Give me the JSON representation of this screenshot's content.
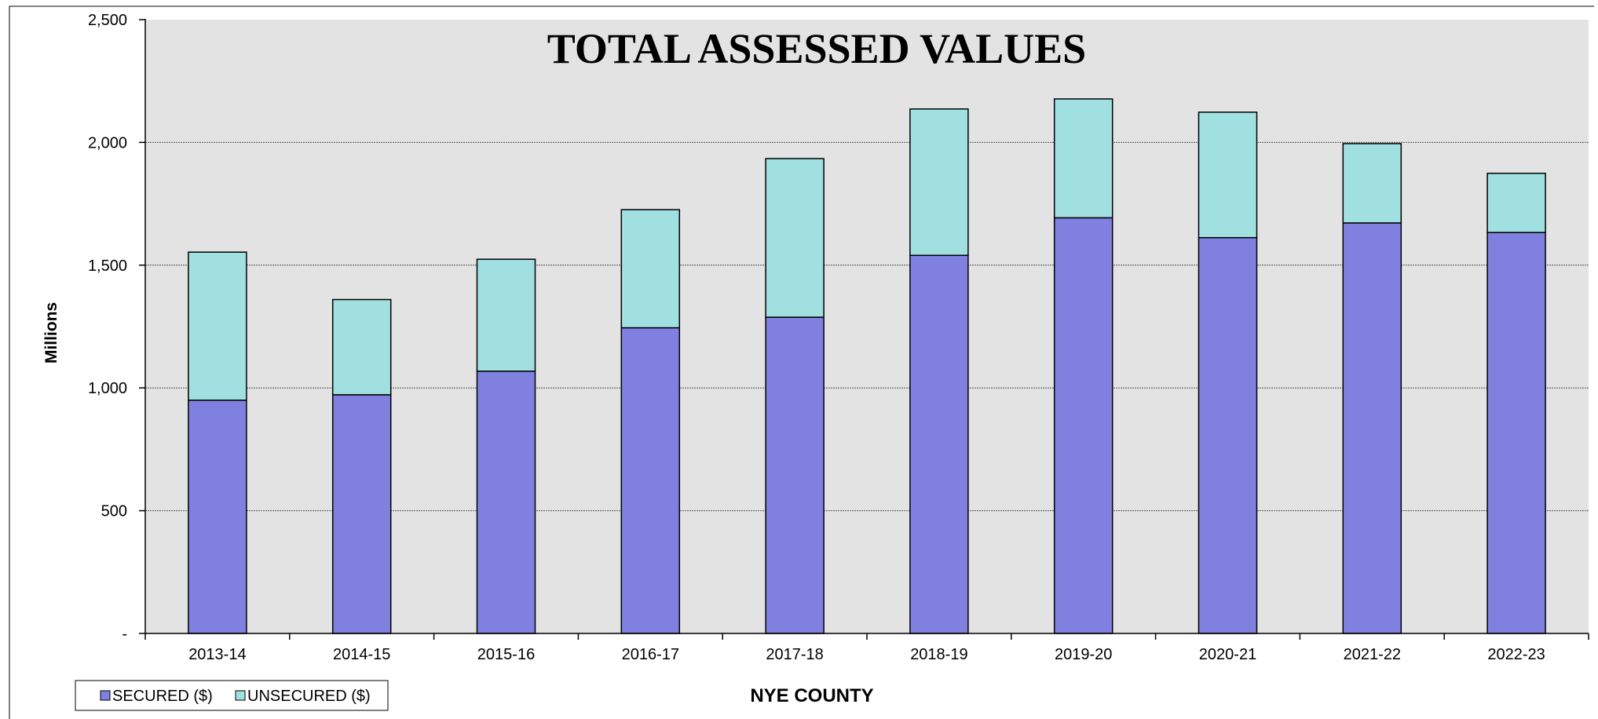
{
  "chart_data": {
    "type": "bar",
    "stacked": true,
    "title": "TOTAL ASSESSED VALUES",
    "xlabel": "NYE COUNTY",
    "ylabel": "Millions",
    "categories": [
      "2013-14",
      "2014-15",
      "2015-16",
      "2016-17",
      "2017-18",
      "2018-19",
      "2019-20",
      "2020-21",
      "2021-22",
      "2022-23"
    ],
    "series": [
      {
        "name": "SECURED ($)",
        "color": "#8080e0",
        "values": [
          950,
          972,
          1068,
          1245,
          1288,
          1540,
          1693,
          1612,
          1672,
          1633
        ]
      },
      {
        "name": "UNSECURED ($)",
        "color": "#a0e0e0",
        "values": [
          603,
          388,
          456,
          481,
          646,
          596,
          484,
          511,
          323,
          241
        ]
      }
    ],
    "ylim": [
      0,
      2500
    ],
    "yticks": [
      0,
      500,
      1000,
      1500,
      2000,
      2500
    ],
    "ytick_labels": [
      "-",
      "500",
      "1,000",
      "1,500",
      "2,000",
      "2,500"
    ],
    "grid": true,
    "legend_position": "bottom-left",
    "plot_background": "#e3e3e3"
  }
}
